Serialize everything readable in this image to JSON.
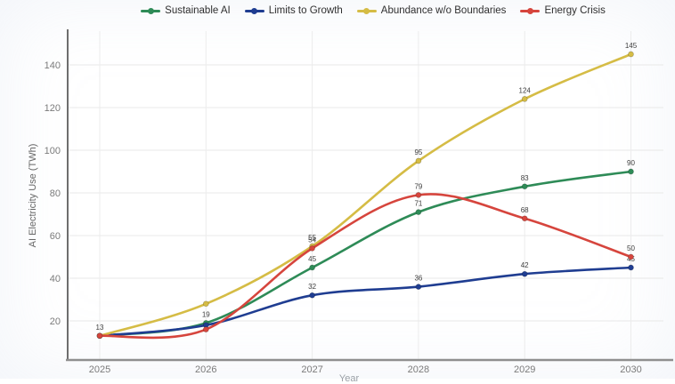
{
  "chart_data": {
    "type": "line",
    "title": "",
    "ylabel": "AI Electricity Use (TWh)",
    "xlabel": "Year",
    "categories": [
      "2025",
      "2026",
      "2027",
      "2028",
      "2029",
      "2030"
    ],
    "y_ticks": [
      20,
      40,
      60,
      80,
      100,
      120,
      140
    ],
    "ylim": [
      0,
      155
    ],
    "grid": true,
    "legend_position": "top",
    "series": [
      {
        "name": "Sustainable AI",
        "color": "#2e8b57",
        "values": [
          13,
          19,
          45,
          71,
          83,
          90
        ],
        "point_labels": [
          "13",
          "19",
          "45",
          "71",
          "83",
          "90"
        ]
      },
      {
        "name": "Limits to Growth",
        "color": "#1f3d91",
        "values": [
          13,
          18,
          32,
          36,
          42,
          45
        ],
        "point_labels": [
          null,
          null,
          "32",
          "36",
          "42",
          "45"
        ]
      },
      {
        "name": "Abundance w/o Boundaries",
        "color": "#d5bc45",
        "values": [
          13,
          28,
          55,
          95,
          124,
          145
        ],
        "point_labels": [
          null,
          null,
          "55",
          "95",
          "124",
          "145"
        ]
      },
      {
        "name": "Energy Crisis",
        "color": "#d6453d",
        "values": [
          13,
          16,
          54,
          79,
          68,
          50
        ],
        "point_labels": [
          null,
          null,
          "54",
          "79",
          "68",
          "50"
        ]
      }
    ],
    "colors": {
      "grid": "#e8e8e8",
      "axis": "#7a7a7a",
      "tick_text": "#7b7b7b",
      "data_label_text": "#3d3d3d"
    }
  }
}
